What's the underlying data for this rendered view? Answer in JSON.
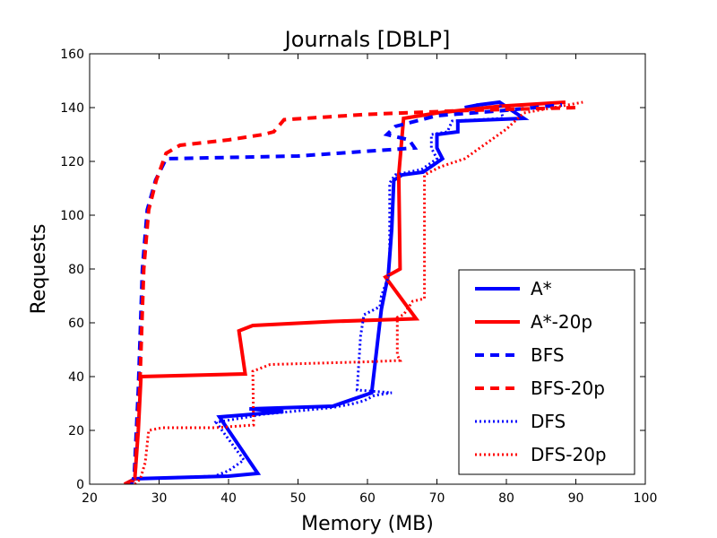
{
  "chart_data": {
    "type": "line",
    "title": "Journals [DBLP]",
    "xlabel": "Memory (MB)",
    "ylabel": "Requests",
    "xlim": [
      20,
      100
    ],
    "ylim": [
      0,
      160
    ],
    "xticks": [
      20,
      30,
      40,
      50,
      60,
      70,
      80,
      90,
      100
    ],
    "yticks": [
      0,
      20,
      40,
      60,
      80,
      100,
      120,
      140,
      160
    ],
    "grid": false,
    "legend_position": "lower-right",
    "series": [
      {
        "name": "A*",
        "color": "#0000ff",
        "dash": "solid",
        "width": 4,
        "points": [
          [
            26,
            0
          ],
          [
            26.3,
            2
          ],
          [
            40,
            3
          ],
          [
            44.2,
            4
          ],
          [
            38.7,
            25
          ],
          [
            43.5,
            26
          ],
          [
            47.9,
            27
          ],
          [
            43,
            28
          ],
          [
            55,
            29
          ],
          [
            60.6,
            34
          ],
          [
            62,
            65
          ],
          [
            63,
            78
          ],
          [
            63.5,
            95
          ],
          [
            63.8,
            113
          ],
          [
            65,
            115
          ],
          [
            68,
            116
          ],
          [
            70.8,
            121
          ],
          [
            70,
            125
          ],
          [
            70,
            130
          ],
          [
            73,
            131
          ],
          [
            73,
            135
          ],
          [
            82.5,
            136
          ],
          [
            79,
            142
          ],
          [
            76,
            141
          ],
          [
            74,
            140
          ]
        ]
      },
      {
        "name": "A*-20p",
        "color": "#ff0000",
        "dash": "solid",
        "width": 4,
        "points": [
          [
            25,
            0
          ],
          [
            26.5,
            2
          ],
          [
            27,
            20
          ],
          [
            27.4,
            40
          ],
          [
            42.4,
            41
          ],
          [
            41.5,
            57
          ],
          [
            43.5,
            59
          ],
          [
            55,
            60.5
          ],
          [
            67,
            61.5
          ],
          [
            62.6,
            77
          ],
          [
            64.7,
            80
          ],
          [
            64.5,
            115
          ],
          [
            65.2,
            136
          ],
          [
            70,
            138
          ],
          [
            79,
            140.5
          ],
          [
            88.5,
            142
          ]
        ]
      },
      {
        "name": "BFS",
        "color": "#0000ff",
        "dash": "dashed",
        "width": 4,
        "points": [
          [
            25.5,
            0
          ],
          [
            26.4,
            2
          ],
          [
            27,
            35
          ],
          [
            27.6,
            80
          ],
          [
            28.3,
            102
          ],
          [
            29.5,
            113
          ],
          [
            31,
            121
          ],
          [
            50,
            122
          ],
          [
            66.8,
            125
          ],
          [
            66,
            128
          ],
          [
            62.8,
            130
          ],
          [
            64,
            133
          ],
          [
            70,
            137
          ],
          [
            80,
            139
          ],
          [
            88,
            141
          ]
        ]
      },
      {
        "name": "BFS-20p",
        "color": "#ff0000",
        "dash": "dashed",
        "width": 4,
        "points": [
          [
            25.5,
            0
          ],
          [
            26.5,
            2
          ],
          [
            27.2,
            35
          ],
          [
            27.8,
            80
          ],
          [
            28.5,
            102
          ],
          [
            29.6,
            113
          ],
          [
            31,
            123
          ],
          [
            33,
            126
          ],
          [
            40,
            128
          ],
          [
            45,
            130
          ],
          [
            46.5,
            131
          ],
          [
            48,
            135.5
          ],
          [
            60,
            137.5
          ],
          [
            75,
            139
          ],
          [
            90,
            140
          ]
        ]
      },
      {
        "name": "DFS",
        "color": "#0000ff",
        "dash": "dotted",
        "width": 3,
        "points": [
          [
            26,
            0
          ],
          [
            26.3,
            2
          ],
          [
            38,
            3
          ],
          [
            40,
            5
          ],
          [
            42.2,
            9
          ],
          [
            38.2,
            23
          ],
          [
            45,
            26
          ],
          [
            55,
            28.5
          ],
          [
            58,
            30
          ],
          [
            59.5,
            31
          ],
          [
            61,
            33
          ],
          [
            63.5,
            34
          ],
          [
            58.5,
            35
          ],
          [
            59,
            55
          ],
          [
            59.5,
            63
          ],
          [
            61.8,
            66
          ],
          [
            62,
            70
          ],
          [
            63,
            77
          ],
          [
            63.2,
            85
          ],
          [
            63.2,
            112
          ],
          [
            64,
            115
          ],
          [
            67.8,
            117
          ],
          [
            70,
            121
          ],
          [
            69.2,
            125
          ],
          [
            69.2,
            130
          ],
          [
            71.5,
            131
          ],
          [
            72.2,
            135
          ],
          [
            79.5,
            136
          ],
          [
            79,
            142
          ],
          [
            75.5,
            141
          ]
        ]
      },
      {
        "name": "DFS-20p",
        "color": "#ff0000",
        "dash": "dotted",
        "width": 3,
        "points": [
          [
            26.5,
            0
          ],
          [
            27.3,
            2
          ],
          [
            28,
            8
          ],
          [
            28.5,
            20
          ],
          [
            30.5,
            21
          ],
          [
            38,
            21
          ],
          [
            43.6,
            22
          ],
          [
            43.5,
            42
          ],
          [
            46,
            44.5
          ],
          [
            60,
            45.5
          ],
          [
            64.7,
            46
          ],
          [
            64.3,
            48
          ],
          [
            64.3,
            62
          ],
          [
            65.2,
            63
          ],
          [
            66.5,
            68
          ],
          [
            68.2,
            69
          ],
          [
            68.2,
            85
          ],
          [
            68.2,
            115
          ],
          [
            70.5,
            118
          ],
          [
            74,
            121
          ],
          [
            80,
            132
          ],
          [
            82.5,
            138
          ],
          [
            91,
            142
          ]
        ]
      }
    ]
  }
}
